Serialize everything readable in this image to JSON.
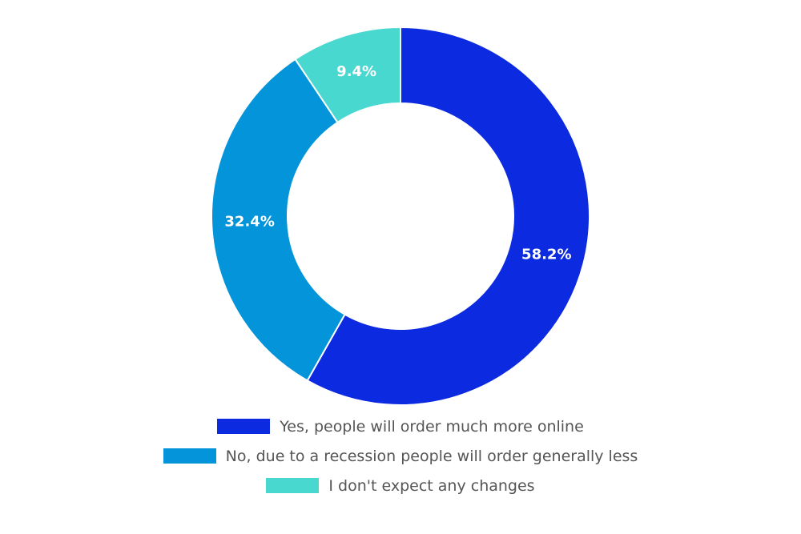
{
  "chart_data": {
    "type": "pie",
    "donut": true,
    "slices": [
      {
        "label": "Yes, people will order much more online",
        "value": 58.2,
        "value_label": "58.2%",
        "color": "#0c2be0"
      },
      {
        "label": "No, due to a recession people will order generally less",
        "value": 32.4,
        "value_label": "32.4%",
        "color": "#0494d9"
      },
      {
        "label": "I don't expect any changes",
        "value": 9.4,
        "value_label": "9.4%",
        "color": "#48d8d0"
      }
    ],
    "legend_position": "bottom"
  }
}
